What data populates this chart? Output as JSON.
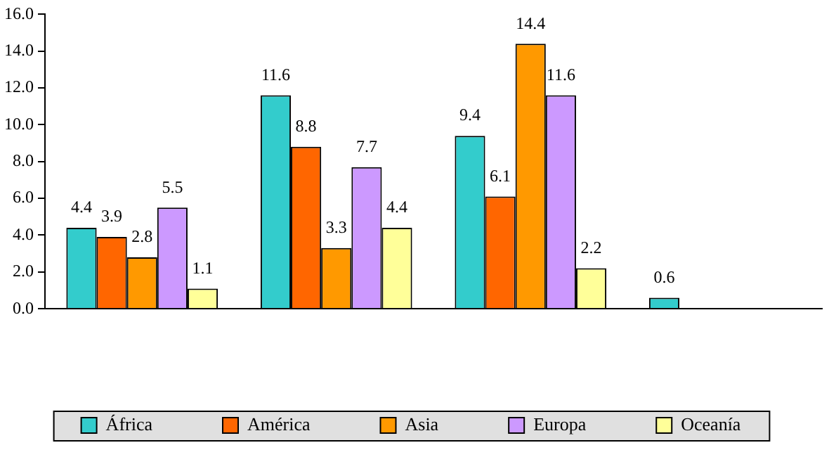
{
  "chart_data": {
    "type": "bar",
    "categories": [
      null,
      null,
      null,
      null
    ],
    "series": [
      {
        "name": "África",
        "color": "#33cccc",
        "values": [
          4.4,
          11.6,
          9.4,
          0.6
        ]
      },
      {
        "name": "América",
        "color": "#ff6600",
        "values": [
          3.9,
          8.8,
          6.1,
          null
        ]
      },
      {
        "name": "Asia",
        "color": "#ff9900",
        "values": [
          2.8,
          3.3,
          14.4,
          null
        ]
      },
      {
        "name": "Europa",
        "color": "#cc99ff",
        "values": [
          5.5,
          7.7,
          11.6,
          null
        ]
      },
      {
        "name": "Oceanía",
        "color": "#ffff99",
        "values": [
          1.1,
          4.4,
          2.2,
          null
        ]
      }
    ],
    "ylim": [
      0,
      16
    ],
    "yticks": [
      {
        "value": 0,
        "label": "0.0"
      },
      {
        "value": 2,
        "label": "2.0"
      },
      {
        "value": 4,
        "label": "4.0"
      },
      {
        "value": 6,
        "label": "6.0"
      },
      {
        "value": 8,
        "label": "8.0"
      },
      {
        "value": 10,
        "label": "10.0"
      },
      {
        "value": 12,
        "label": "12.0"
      },
      {
        "value": 14,
        "label": "14.0"
      },
      {
        "value": 16,
        "label": "16.0"
      }
    ],
    "grid": false,
    "legend": "bottom",
    "data_labels": true
  }
}
